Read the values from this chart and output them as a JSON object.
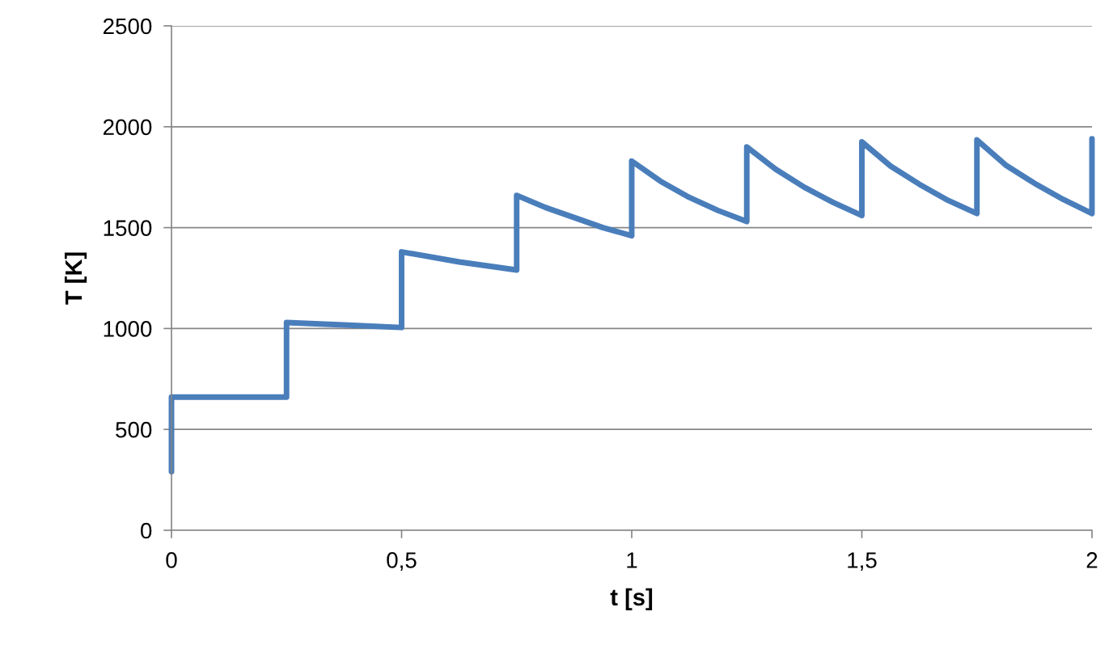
{
  "chart_data": {
    "type": "line",
    "xlabel": "t [s]",
    "ylabel": "T [K]",
    "x": [
      0,
      0,
      0.25,
      0.25,
      0.375,
      0.5,
      0.5,
      0.625,
      0.75,
      0.75,
      0.8125,
      0.875,
      0.9375,
      1.0,
      1.0,
      1.0625,
      1.125,
      1.1875,
      1.25,
      1.25,
      1.3125,
      1.375,
      1.4375,
      1.5,
      1.5,
      1.5625,
      1.625,
      1.6875,
      1.75,
      1.75,
      1.8125,
      1.875,
      1.9375,
      2.0,
      2.0
    ],
    "series": [
      {
        "color": "#4a7ebb",
        "values": [
          290,
          660,
          660,
          1030,
          1018,
          1005,
          1380,
          1330,
          1290,
          1660,
          1600,
          1550,
          1500,
          1460,
          1830,
          1730,
          1650,
          1585,
          1530,
          1900,
          1790,
          1700,
          1625,
          1560,
          1925,
          1805,
          1715,
          1635,
          1570,
          1935,
          1810,
          1720,
          1640,
          1570,
          1940
        ]
      }
    ],
    "xlim": [
      0,
      2
    ],
    "xticks": [
      0,
      {
        "value": 0.5,
        "label": "0,5"
      },
      1,
      {
        "value": 1.5,
        "label": "1,5"
      },
      2
    ],
    "ylim": [
      0,
      2500
    ],
    "yticks": [
      0,
      500,
      1000,
      1500,
      2000,
      2500
    ],
    "grid": "y",
    "legend": false,
    "marker": "none",
    "line_style": "solid"
  }
}
